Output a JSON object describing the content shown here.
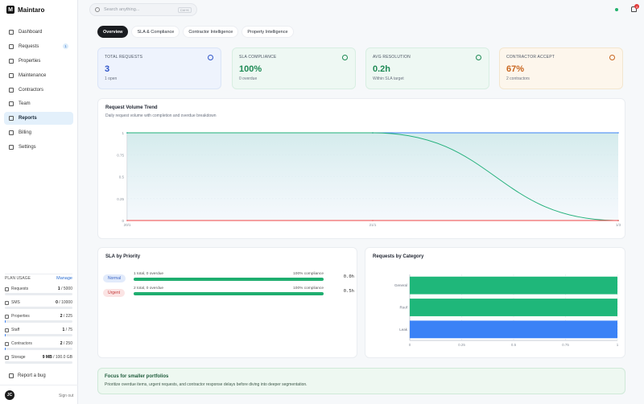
{
  "app": {
    "name": "Maintaro",
    "logo_letter": "M"
  },
  "sidebar": {
    "items": [
      {
        "label": "Dashboard",
        "icon": "grid-icon",
        "active": false
      },
      {
        "label": "Requests",
        "icon": "inbox-icon",
        "active": false,
        "badge": "1"
      },
      {
        "label": "Properties",
        "icon": "building-icon",
        "active": false
      },
      {
        "label": "Maintenance",
        "icon": "wrench-icon",
        "active": false
      },
      {
        "label": "Contractors",
        "icon": "hardhat-icon",
        "active": false
      },
      {
        "label": "Team",
        "icon": "users-icon",
        "active": false
      },
      {
        "label": "Reports",
        "icon": "bar-chart-icon",
        "active": true
      },
      {
        "label": "Billing",
        "icon": "card-icon",
        "active": false
      },
      {
        "label": "Settings",
        "icon": "gear-icon",
        "active": false
      }
    ],
    "plan_usage": {
      "title": "PLAN USAGE",
      "manage": "Manage",
      "rows": [
        {
          "name": "Requests",
          "used": "1",
          "limit": "5000",
          "fraction": 0.0002
        },
        {
          "name": "SMS",
          "used": "0",
          "limit": "10000",
          "fraction": 0.0
        },
        {
          "name": "Properties",
          "used": "2",
          "limit": "225",
          "fraction": 0.009
        },
        {
          "name": "Staff",
          "used": "1",
          "limit": "75",
          "fraction": 0.013
        },
        {
          "name": "Contractors",
          "used": "2",
          "limit": "250",
          "fraction": 0.008
        },
        {
          "name": "Storage",
          "used": "9 MB",
          "limit": "100.0 GB",
          "fraction": 0.0001
        }
      ]
    },
    "report_bug": "Report a bug",
    "user_initials": "JC",
    "sign_out": "Sign out"
  },
  "header": {
    "search_placeholder": "Search anything...",
    "search_shortcut": "Ctrl+K",
    "notification_count": "4",
    "status_color": "#23b26d"
  },
  "tabs": [
    {
      "label": "Overview",
      "active": true
    },
    {
      "label": "SLA & Compliance",
      "active": false
    },
    {
      "label": "Contractor Intelligence",
      "active": false
    },
    {
      "label": "Property Intelligence",
      "active": false
    }
  ],
  "kpis": [
    {
      "label": "TOTAL REQUESTS",
      "value": "3",
      "sub": "1 open",
      "bg": "#eef3fd",
      "border": "#dbe5f7",
      "value_color": "#2f55c9",
      "icon": "activity-icon"
    },
    {
      "label": "SLA COMPLIANCE",
      "value": "100%",
      "sub": "0 overdue",
      "bg": "#eef8f3",
      "border": "#d8eee2",
      "value_color": "#1e8a55",
      "icon": "shield-icon"
    },
    {
      "label": "AVG RESOLUTION",
      "value": "0.2h",
      "sub": "Within SLA target",
      "bg": "#eef8f3",
      "border": "#d8eee2",
      "value_color": "#1e8a55",
      "icon": "clock-icon"
    },
    {
      "label": "CONTRACTOR ACCEPT",
      "value": "67%",
      "sub": "2 contractors",
      "bg": "#fdf6ec",
      "border": "#f3e6cf",
      "value_color": "#c9661f",
      "icon": "user-check-icon"
    }
  ],
  "volume_card": {
    "title": "Request Volume Trend",
    "subtitle": "Daily request volume with completion and overdue breakdown"
  },
  "sla_card": {
    "title": "SLA by Priority",
    "rows": [
      {
        "priority": "Normal",
        "meta": "1 total, 0 overdue",
        "compliance": "100% compliance",
        "compliance_pct": 100,
        "time": "0.0h",
        "pill_bg": "#e2ebfb",
        "pill_fg": "#3a64c4"
      },
      {
        "priority": "Urgent",
        "meta": "2 total, 0 overdue",
        "compliance": "100% compliance",
        "compliance_pct": 100,
        "time": "0.5h",
        "pill_bg": "#fbe4e4",
        "pill_fg": "#c43a3a"
      }
    ]
  },
  "category_card": {
    "title": "Requests by Category"
  },
  "tip": {
    "title": "Focus for smaller portfolios",
    "text": "Prioritize overdue items, urgent requests, and contractor response delays before diving into deeper segmentation."
  },
  "chart_data": [
    {
      "type": "area",
      "x": [
        "20/1",
        "21/1",
        "1/3"
      ],
      "ylim": [
        0,
        1
      ],
      "yticks": [
        "0",
        "0.25",
        "0.5",
        "0.75",
        "1"
      ],
      "xticks": [
        "20/1",
        "21/1",
        "1/3"
      ],
      "series": [
        {
          "color": "#3b82f6",
          "values": [
            1,
            1,
            1
          ]
        },
        {
          "color": "#22b07a",
          "values": [
            1,
            1,
            0
          ]
        },
        {
          "color": "#ef4444",
          "values": [
            0,
            0,
            0
          ]
        }
      ]
    },
    {
      "type": "bar",
      "orientation": "horizontal",
      "categories": [
        "General",
        "Roof",
        "Leak"
      ],
      "values": [
        1,
        1,
        1
      ],
      "colors": [
        "#1fb77a",
        "#1fb77a",
        "#3b82f6"
      ],
      "xlim": [
        0,
        1
      ],
      "xticks": [
        "0",
        "0.25",
        "0.5",
        "0.75",
        "1"
      ]
    }
  ]
}
